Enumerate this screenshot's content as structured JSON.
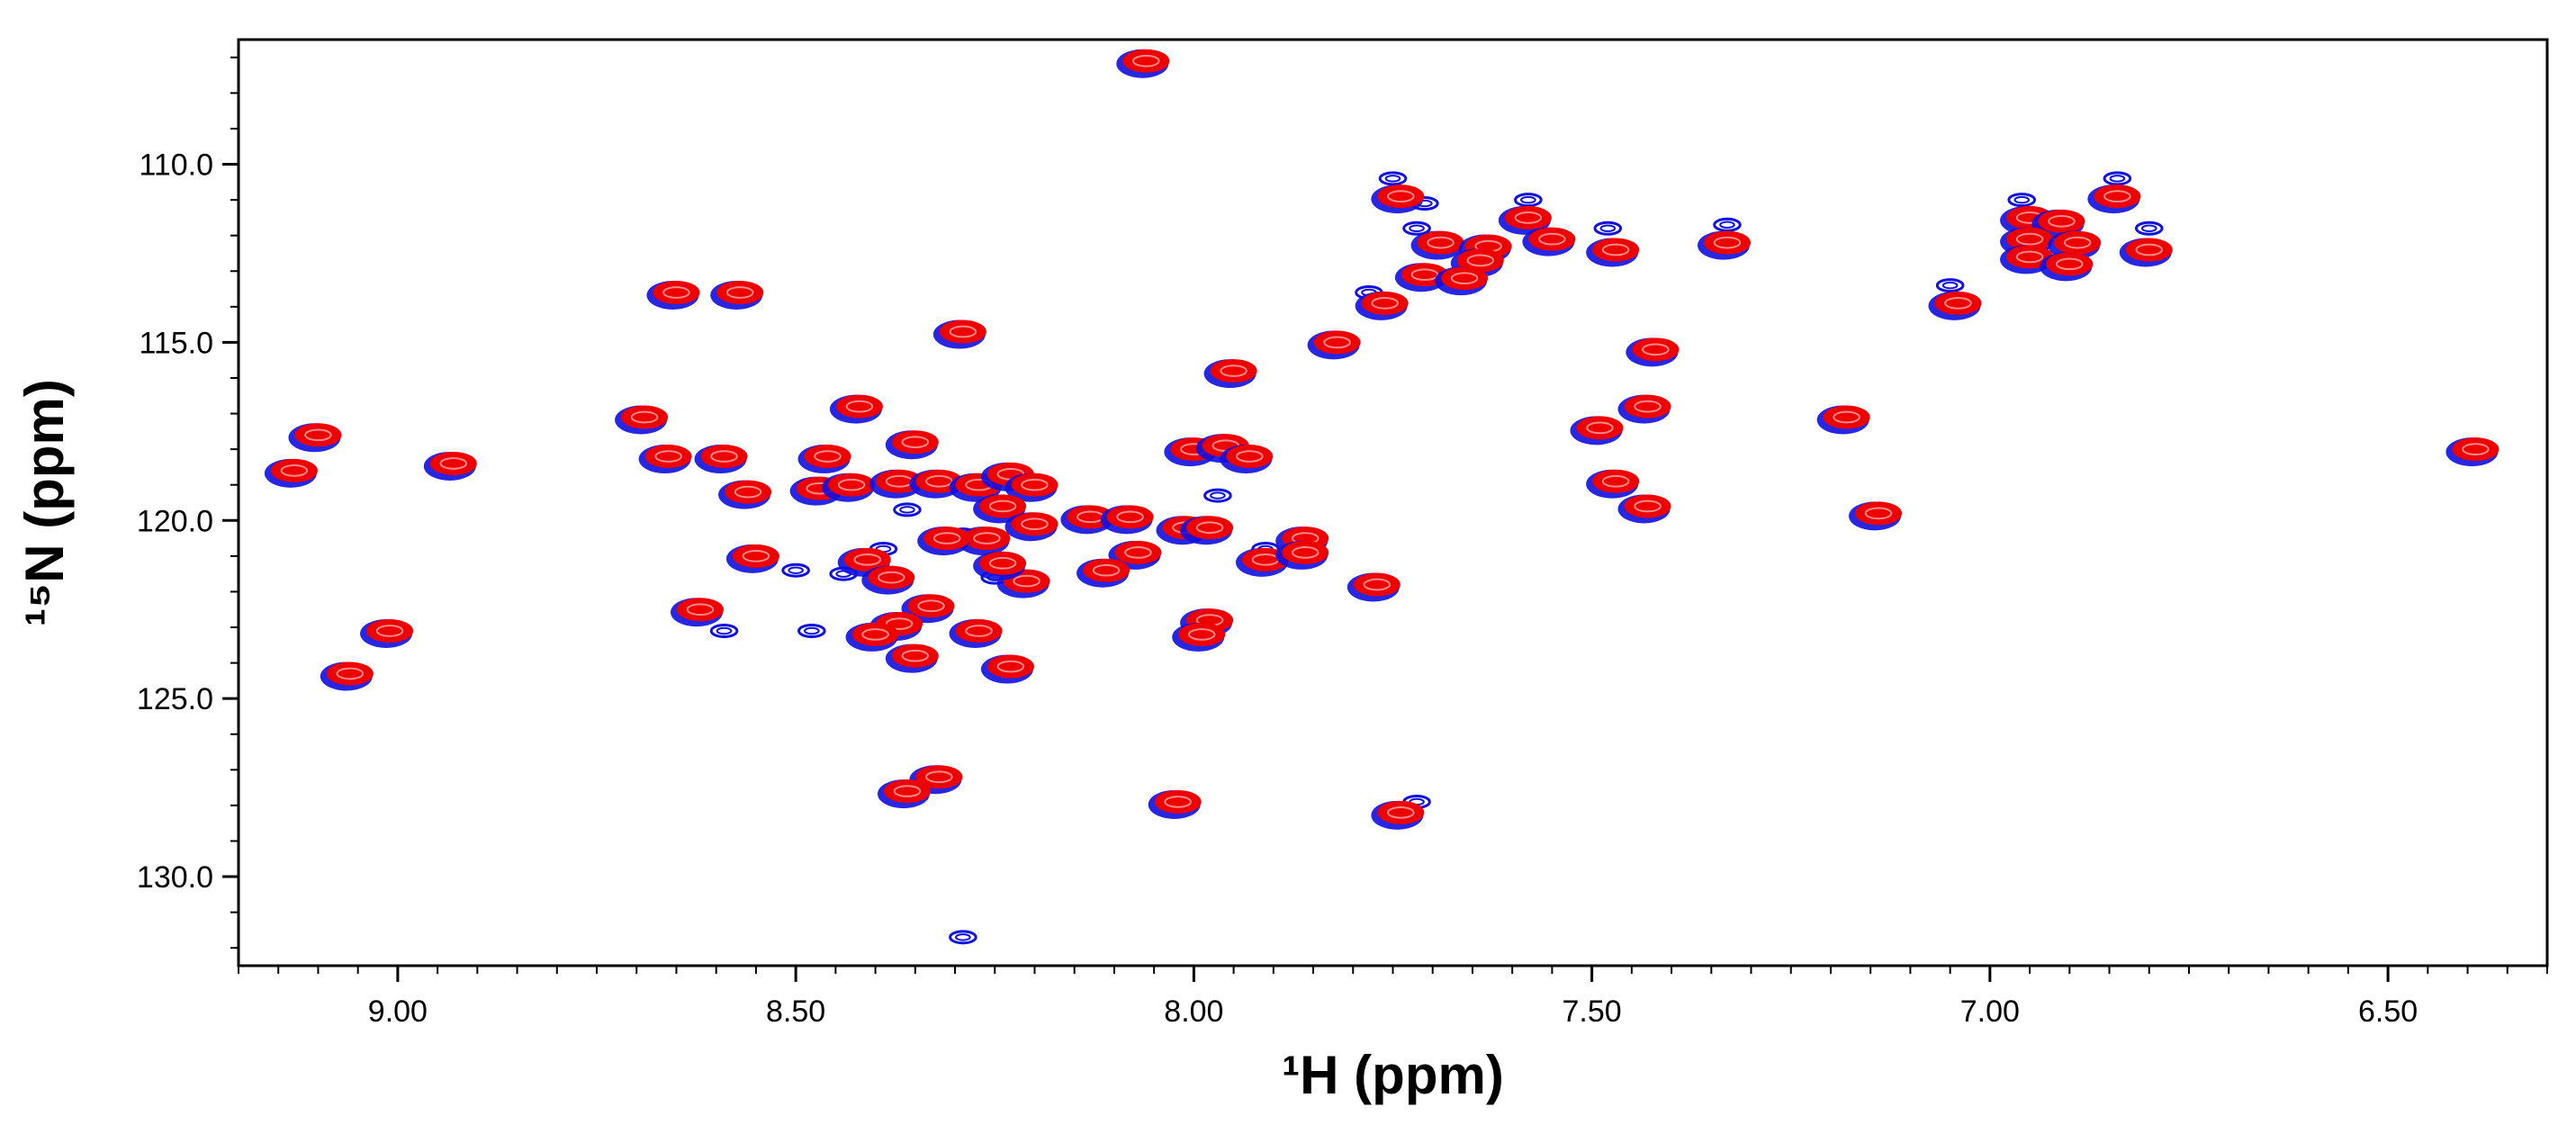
{
  "chart_data": {
    "type": "scatter",
    "title": "",
    "xlabel": "¹H (ppm)",
    "ylabel": "¹⁵N (ppm)",
    "xlim": [
      9.2,
      6.3
    ],
    "ylim": [
      106.5,
      132.5
    ],
    "x_reversed": true,
    "y_reversed": true,
    "grid": false,
    "legend": "none",
    "x_ticks": [
      9.0,
      8.5,
      8.0,
      7.5,
      7.0,
      6.5
    ],
    "x_tick_labels": [
      "9.00",
      "8.50",
      "8.00",
      "7.50",
      "7.00",
      "6.50"
    ],
    "y_ticks": [
      110.0,
      115.0,
      120.0,
      125.0,
      130.0
    ],
    "y_tick_labels": [
      "110.0",
      "115.0",
      "120.0",
      "125.0",
      "130.0"
    ],
    "colors": {
      "spectrum_1": "#1010e0",
      "spectrum_2": "#ee0000",
      "frame": "#000000"
    },
    "series": [
      {
        "color": "#ee0000",
        "peaks": [
          {
            "x": 8.06,
            "y": 107.1
          },
          {
            "x": 7.74,
            "y": 110.9
          },
          {
            "x": 7.58,
            "y": 111.5
          },
          {
            "x": 7.55,
            "y": 112.1
          },
          {
            "x": 7.69,
            "y": 112.2
          },
          {
            "x": 7.63,
            "y": 112.3
          },
          {
            "x": 7.64,
            "y": 112.7
          },
          {
            "x": 7.47,
            "y": 112.4
          },
          {
            "x": 7.33,
            "y": 112.2
          },
          {
            "x": 7.71,
            "y": 113.1
          },
          {
            "x": 7.66,
            "y": 113.2
          },
          {
            "x": 7.76,
            "y": 113.9
          },
          {
            "x": 7.82,
            "y": 115.0
          },
          {
            "x": 7.95,
            "y": 115.8
          },
          {
            "x": 6.84,
            "y": 110.9
          },
          {
            "x": 6.95,
            "y": 111.5
          },
          {
            "x": 6.91,
            "y": 111.6
          },
          {
            "x": 6.95,
            "y": 112.1
          },
          {
            "x": 6.89,
            "y": 112.2
          },
          {
            "x": 6.95,
            "y": 112.6
          },
          {
            "x": 6.9,
            "y": 112.8
          },
          {
            "x": 6.8,
            "y": 112.4
          },
          {
            "x": 7.04,
            "y": 113.9
          },
          {
            "x": 8.57,
            "y": 113.6
          },
          {
            "x": 8.65,
            "y": 113.6
          },
          {
            "x": 8.29,
            "y": 114.7
          },
          {
            "x": 7.42,
            "y": 115.2
          },
          {
            "x": 7.43,
            "y": 116.8
          },
          {
            "x": 7.49,
            "y": 117.4
          },
          {
            "x": 7.18,
            "y": 117.1
          },
          {
            "x": 9.1,
            "y": 117.6
          },
          {
            "x": 9.13,
            "y": 118.6
          },
          {
            "x": 8.93,
            "y": 118.4
          },
          {
            "x": 8.69,
            "y": 117.1
          },
          {
            "x": 8.66,
            "y": 118.2
          },
          {
            "x": 8.59,
            "y": 118.2
          },
          {
            "x": 8.56,
            "y": 119.2
          },
          {
            "x": 8.46,
            "y": 118.2
          },
          {
            "x": 8.42,
            "y": 116.8
          },
          {
            "x": 8.35,
            "y": 117.8
          },
          {
            "x": 8.47,
            "y": 119.1
          },
          {
            "x": 8.43,
            "y": 119.0
          },
          {
            "x": 8.37,
            "y": 118.9
          },
          {
            "x": 8.32,
            "y": 118.9
          },
          {
            "x": 8.27,
            "y": 119.0
          },
          {
            "x": 8.23,
            "y": 118.7
          },
          {
            "x": 8.2,
            "y": 119.0
          },
          {
            "x": 8.24,
            "y": 119.6
          },
          {
            "x": 8.2,
            "y": 120.1
          },
          {
            "x": 8.13,
            "y": 119.9
          },
          {
            "x": 8.08,
            "y": 119.9
          },
          {
            "x": 8.26,
            "y": 120.5
          },
          {
            "x": 8.31,
            "y": 120.5
          },
          {
            "x": 8.0,
            "y": 118.0
          },
          {
            "x": 7.96,
            "y": 117.9
          },
          {
            "x": 7.93,
            "y": 118.2
          },
          {
            "x": 8.01,
            "y": 120.2
          },
          {
            "x": 7.98,
            "y": 120.2
          },
          {
            "x": 8.07,
            "y": 120.9
          },
          {
            "x": 8.11,
            "y": 121.4
          },
          {
            "x": 7.91,
            "y": 121.1
          },
          {
            "x": 7.86,
            "y": 120.5
          },
          {
            "x": 7.86,
            "y": 120.9
          },
          {
            "x": 7.77,
            "y": 121.8
          },
          {
            "x": 7.47,
            "y": 118.9
          },
          {
            "x": 7.43,
            "y": 119.6
          },
          {
            "x": 7.14,
            "y": 119.8
          },
          {
            "x": 8.55,
            "y": 121.0
          },
          {
            "x": 8.41,
            "y": 121.1
          },
          {
            "x": 8.38,
            "y": 121.6
          },
          {
            "x": 8.21,
            "y": 121.7
          },
          {
            "x": 8.24,
            "y": 121.2
          },
          {
            "x": 8.62,
            "y": 122.5
          },
          {
            "x": 8.33,
            "y": 122.4
          },
          {
            "x": 8.37,
            "y": 122.9
          },
          {
            "x": 8.27,
            "y": 123.1
          },
          {
            "x": 8.4,
            "y": 123.2
          },
          {
            "x": 7.98,
            "y": 122.8
          },
          {
            "x": 7.99,
            "y": 123.2
          },
          {
            "x": 9.01,
            "y": 123.1
          },
          {
            "x": 9.06,
            "y": 124.3
          },
          {
            "x": 8.35,
            "y": 123.8
          },
          {
            "x": 8.23,
            "y": 124.1
          },
          {
            "x": 8.32,
            "y": 127.2
          },
          {
            "x": 8.36,
            "y": 127.6
          },
          {
            "x": 8.02,
            "y": 127.9
          },
          {
            "x": 7.74,
            "y": 128.2
          },
          {
            "x": 6.39,
            "y": 118.0
          }
        ]
      },
      {
        "color": "#1010e0",
        "peaks": [
          {
            "x": 7.75,
            "y": 110.4
          },
          {
            "x": 7.58,
            "y": 111.0
          },
          {
            "x": 7.72,
            "y": 111.8
          },
          {
            "x": 7.48,
            "y": 111.8
          },
          {
            "x": 7.33,
            "y": 111.7
          },
          {
            "x": 7.78,
            "y": 113.6
          },
          {
            "x": 6.84,
            "y": 110.4
          },
          {
            "x": 6.96,
            "y": 111.0
          },
          {
            "x": 6.8,
            "y": 111.8
          },
          {
            "x": 7.05,
            "y": 113.4
          },
          {
            "x": 8.48,
            "y": 119.0
          },
          {
            "x": 8.56,
            "y": 119.1
          },
          {
            "x": 8.36,
            "y": 119.7
          },
          {
            "x": 8.29,
            "y": 120.4
          },
          {
            "x": 8.44,
            "y": 121.5
          },
          {
            "x": 8.5,
            "y": 121.4
          },
          {
            "x": 8.39,
            "y": 120.8
          },
          {
            "x": 8.25,
            "y": 121.6
          },
          {
            "x": 8.59,
            "y": 123.1
          },
          {
            "x": 8.48,
            "y": 123.1
          },
          {
            "x": 8.06,
            "y": 121.0
          },
          {
            "x": 7.97,
            "y": 119.3
          },
          {
            "x": 7.91,
            "y": 120.8
          },
          {
            "x": 7.71,
            "y": 111.1
          },
          {
            "x": 7.72,
            "y": 127.9
          },
          {
            "x": 8.29,
            "y": 131.7
          },
          {
            "x": 8.36,
            "y": 117.8
          }
        ]
      }
    ]
  }
}
